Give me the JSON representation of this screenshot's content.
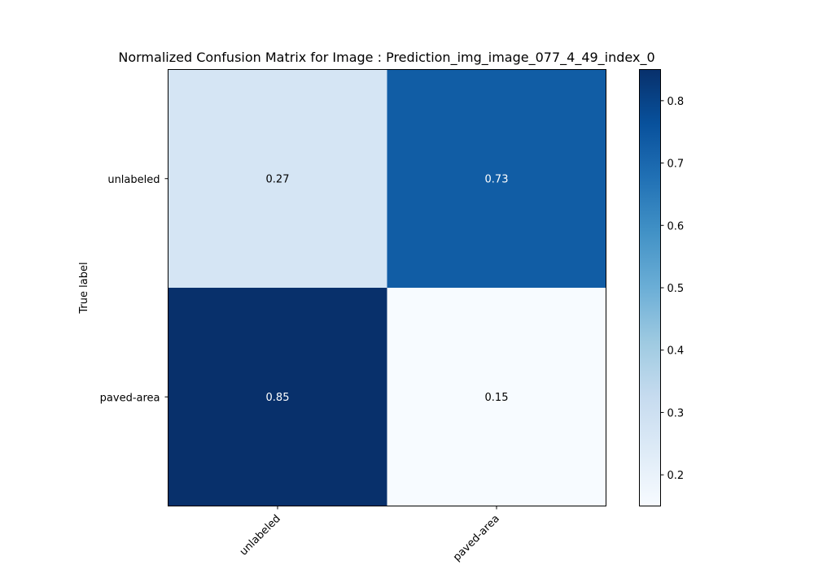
{
  "chart_data": {
    "type": "heatmap",
    "title": "Normalized Confusion Matrix for Image : Prediction_img_image_077_4_49_index_0",
    "ylabel": "True label",
    "xlabel": "",
    "x_categories": [
      "unlabeled",
      "paved-area"
    ],
    "y_categories": [
      "unlabeled",
      "paved-area"
    ],
    "values": [
      [
        0.27,
        0.73
      ],
      [
        0.85,
        0.15
      ]
    ],
    "cell_labels": [
      [
        "0.27",
        "0.73"
      ],
      [
        "0.85",
        "0.15"
      ]
    ],
    "colormap": "Blues",
    "colorbar": {
      "range": [
        0.15,
        0.85
      ],
      "ticks": [
        0.2,
        0.3,
        0.4,
        0.5,
        0.6,
        0.7,
        0.8
      ],
      "tick_labels": [
        "0.2",
        "0.3",
        "0.4",
        "0.5",
        "0.6",
        "0.7",
        "0.8"
      ]
    },
    "grid": false
  }
}
